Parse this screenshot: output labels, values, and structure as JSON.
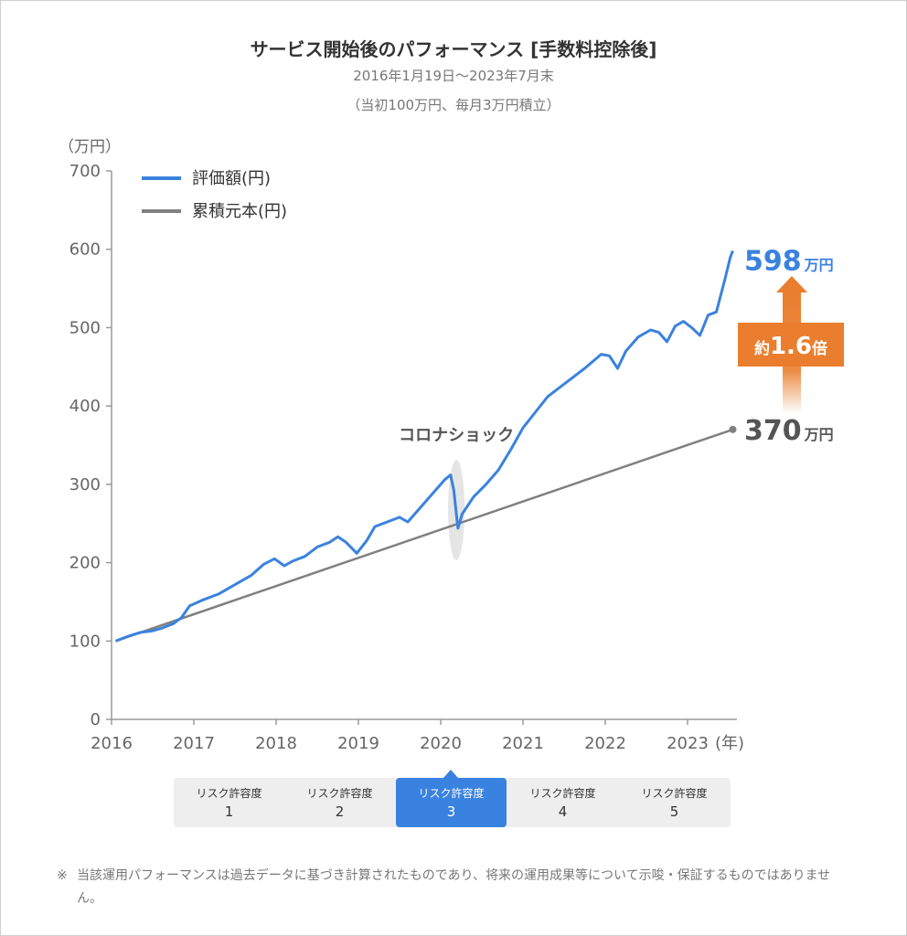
{
  "header": {
    "title": "サービス開始後のパフォーマンス [手数料控除後]",
    "subtitle_period": "2016年1月19日～2023年7月末",
    "subtitle_condition": "（当初100万円、毎月3万円積立）"
  },
  "chart_data": {
    "type": "line",
    "ylabel": "（万円）",
    "xunit": "(年)",
    "ylim": [
      0,
      700
    ],
    "yticks": [
      0,
      100,
      200,
      300,
      400,
      500,
      600,
      700
    ],
    "xticks": [
      "2016",
      "2017",
      "2018",
      "2019",
      "2020",
      "2021",
      "2022",
      "2023"
    ],
    "xlim": [
      2016.0,
      2023.6
    ],
    "legend_position": "top-left",
    "grid": false,
    "series": [
      {
        "name": "評価額(円)",
        "color": "#3a82df",
        "points": [
          [
            2016.05,
            100
          ],
          [
            2016.2,
            106
          ],
          [
            2016.35,
            111
          ],
          [
            2016.5,
            113
          ],
          [
            2016.6,
            116
          ],
          [
            2016.75,
            122
          ],
          [
            2016.85,
            130
          ],
          [
            2016.95,
            145
          ],
          [
            2017.1,
            152
          ],
          [
            2017.3,
            160
          ],
          [
            2017.5,
            172
          ],
          [
            2017.7,
            184
          ],
          [
            2017.85,
            198
          ],
          [
            2017.98,
            205
          ],
          [
            2018.1,
            196
          ],
          [
            2018.2,
            202
          ],
          [
            2018.35,
            208
          ],
          [
            2018.5,
            220
          ],
          [
            2018.65,
            226
          ],
          [
            2018.75,
            233
          ],
          [
            2018.85,
            226
          ],
          [
            2018.98,
            212
          ],
          [
            2019.1,
            228
          ],
          [
            2019.2,
            246
          ],
          [
            2019.35,
            252
          ],
          [
            2019.5,
            258
          ],
          [
            2019.6,
            252
          ],
          [
            2019.75,
            270
          ],
          [
            2019.9,
            288
          ],
          [
            2020.05,
            306
          ],
          [
            2020.12,
            312
          ],
          [
            2020.16,
            292
          ],
          [
            2020.19,
            262
          ],
          [
            2020.21,
            244
          ],
          [
            2020.26,
            262
          ],
          [
            2020.4,
            284
          ],
          [
            2020.55,
            300
          ],
          [
            2020.7,
            318
          ],
          [
            2020.85,
            344
          ],
          [
            2021.0,
            372
          ],
          [
            2021.15,
            392
          ],
          [
            2021.3,
            412
          ],
          [
            2021.45,
            424
          ],
          [
            2021.6,
            436
          ],
          [
            2021.75,
            448
          ],
          [
            2021.95,
            466
          ],
          [
            2022.05,
            464
          ],
          [
            2022.15,
            448
          ],
          [
            2022.25,
            470
          ],
          [
            2022.4,
            488
          ],
          [
            2022.55,
            497
          ],
          [
            2022.65,
            494
          ],
          [
            2022.75,
            482
          ],
          [
            2022.85,
            502
          ],
          [
            2022.95,
            508
          ],
          [
            2023.05,
            500
          ],
          [
            2023.15,
            490
          ],
          [
            2023.25,
            516
          ],
          [
            2023.35,
            520
          ],
          [
            2023.45,
            560
          ],
          [
            2023.52,
            590
          ],
          [
            2023.55,
            598
          ]
        ]
      },
      {
        "name": "累積元本(円)",
        "color": "#808080",
        "points": [
          [
            2016.05,
            100
          ],
          [
            2023.55,
            370
          ]
        ]
      }
    ],
    "annotations": {
      "final_value_number": "598",
      "final_principal_number": "370",
      "unit": "万円",
      "multiplier_prefix": "約",
      "multiplier_value": "1.6",
      "multiplier_suffix": "倍",
      "event_label": "コロナショック",
      "event_x": 2020.19
    }
  },
  "risk_tabs": {
    "selected_index": 2,
    "items": [
      {
        "label": "リスク許容度",
        "level": "1"
      },
      {
        "label": "リスク許容度",
        "level": "2"
      },
      {
        "label": "リスク許容度",
        "level": "3"
      },
      {
        "label": "リスク許容度",
        "level": "4"
      },
      {
        "label": "リスク許容度",
        "level": "5"
      }
    ]
  },
  "footnote": {
    "mark": "※",
    "text": "当該運用パフォーマンスは過去データに基づき計算されたものであり、将来の運用成果等について示唆・保証するものではありません。"
  },
  "colors": {
    "value_line": "#3a82df",
    "principal_line": "#808080",
    "arrow": "#ea7e2e",
    "text_principal": "#555555"
  }
}
